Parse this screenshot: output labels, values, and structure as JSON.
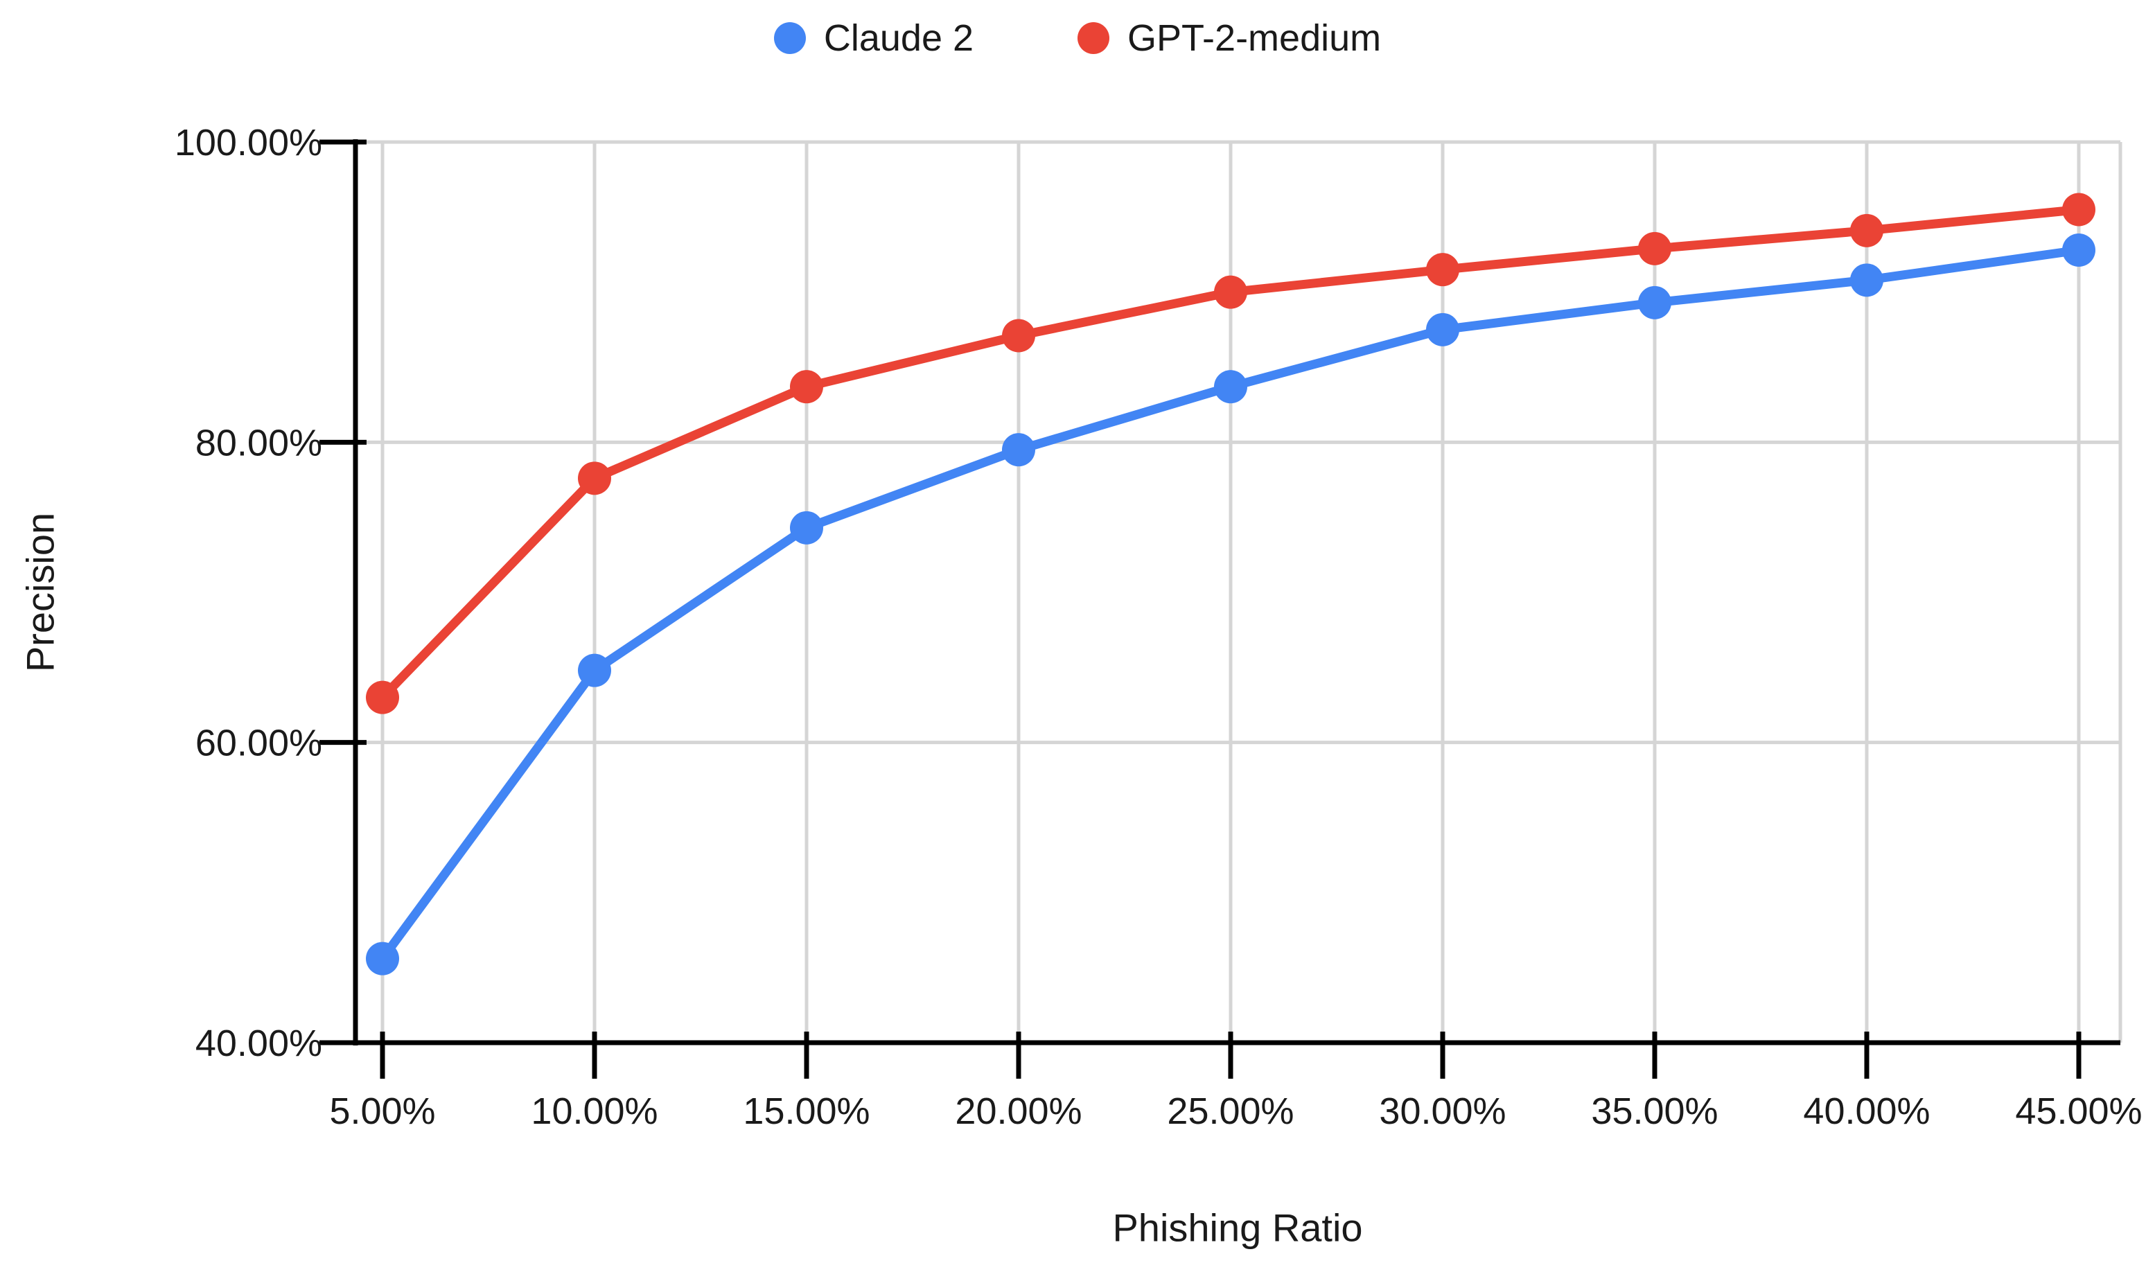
{
  "page": {
    "background": "#ffffff"
  },
  "chart_data": {
    "type": "line",
    "title": "",
    "xlabel": "Phishing Ratio",
    "ylabel": "Precision",
    "x_tick_labels": [
      "5.00%",
      "10.00%",
      "15.00%",
      "20.00%",
      "25.00%",
      "30.00%",
      "35.00%",
      "40.00%",
      "45.00%"
    ],
    "x_values": [
      5,
      10,
      15,
      20,
      25,
      30,
      35,
      40,
      45
    ],
    "y_tick_labels": [
      "100.00%",
      "80.00%",
      "60.00%",
      "40.00%"
    ],
    "y_tick_values": [
      100,
      80,
      60,
      40
    ],
    "xlim": [
      5,
      45
    ],
    "ylim": [
      40,
      100
    ],
    "grid": true,
    "legend_position": "top-center",
    "gridline_color": "#d5d5d5",
    "axis_color": "#000000",
    "text_color": "#1a1a1a",
    "series": [
      {
        "name": "Claude 2",
        "color": "#4285F4",
        "values": [
          45.6,
          64.8,
          74.3,
          79.5,
          83.7,
          87.5,
          89.3,
          90.8,
          92.8
        ]
      },
      {
        "name": "GPT-2-medium",
        "color": "#EA4335",
        "values": [
          63.0,
          77.6,
          83.7,
          87.1,
          90.0,
          91.5,
          92.9,
          94.1,
          95.5
        ]
      }
    ]
  }
}
